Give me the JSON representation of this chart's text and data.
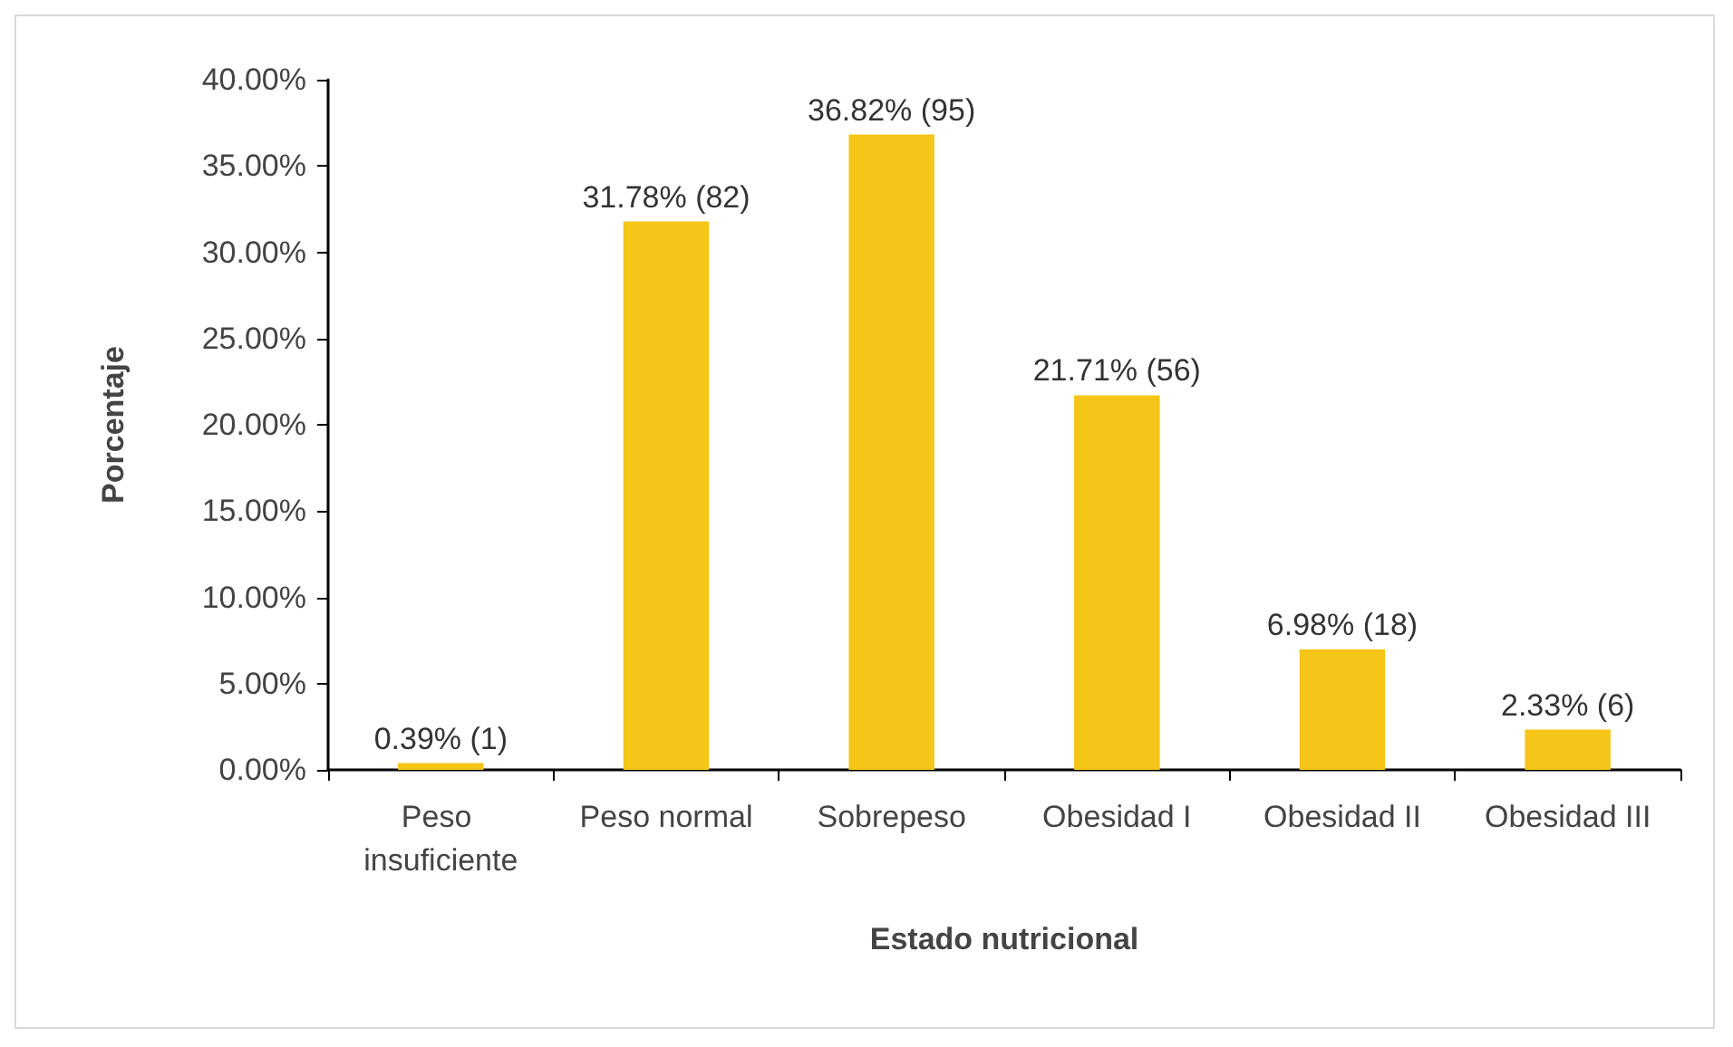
{
  "chart_data": {
    "type": "bar",
    "xlabel": "Estado nutricional",
    "ylabel": "Porcentaje",
    "categories": [
      "Peso insuficiente",
      "Peso normal",
      "Sobrepeso",
      "Obesidad I",
      "Obesidad II",
      "Obesidad III"
    ],
    "values": [
      0.39,
      31.78,
      36.82,
      21.71,
      6.98,
      2.33
    ],
    "value_labels": [
      "0.39% (1)",
      "31.78% (82)",
      "36.82% (95)",
      "21.71% (56)",
      "6.98% (18)",
      "2.33% (6)"
    ],
    "color": "#f5c518",
    "ylim": [
      0,
      40
    ],
    "yticks": [
      {
        "value": 0,
        "label": "0.00%"
      },
      {
        "value": 5,
        "label": "5.00%"
      },
      {
        "value": 10,
        "label": "10.00%"
      },
      {
        "value": 15,
        "label": "15.00%"
      },
      {
        "value": 20,
        "label": "20.00%"
      },
      {
        "value": 25,
        "label": "25.00%"
      },
      {
        "value": 30,
        "label": "30.00%"
      },
      {
        "value": 35,
        "label": "35.00%"
      },
      {
        "value": 40,
        "label": "40.00%"
      }
    ],
    "grid": false
  }
}
